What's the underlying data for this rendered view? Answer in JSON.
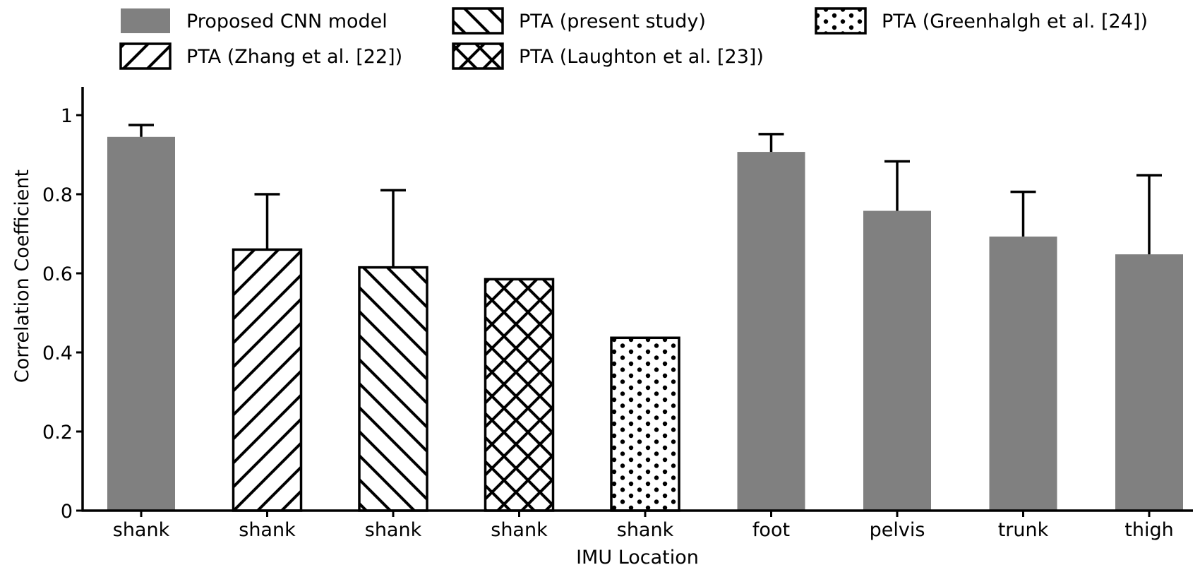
{
  "chart_data": {
    "type": "bar",
    "title": "",
    "xlabel": "IMU Location",
    "ylabel": "Correlation Coefficient",
    "ylim": [
      0,
      1.05
    ],
    "yticks": [
      {
        "value": 0,
        "label": "0"
      },
      {
        "value": 0.2,
        "label": "0.2"
      },
      {
        "value": 0.4,
        "label": "0.4"
      },
      {
        "value": 0.6,
        "label": "0.6"
      },
      {
        "value": 0.8,
        "label": "0.8"
      },
      {
        "value": 1,
        "label": "1"
      }
    ],
    "grid": false,
    "legend_position": "top",
    "legend": [
      {
        "key": "cnn",
        "label": "Proposed CNN model",
        "pattern": "solid"
      },
      {
        "key": "zhang",
        "label": "PTA (Zhang et al. [22])",
        "pattern": "forward-diagonal"
      },
      {
        "key": "present",
        "label": "PTA (present study)",
        "pattern": "back-diagonal"
      },
      {
        "key": "laughton",
        "label": "PTA (Laughton et al. [23])",
        "pattern": "crosshatch"
      },
      {
        "key": "greenhalgh",
        "label": "PTA (Greenhalgh et al. [24])",
        "pattern": "dots"
      }
    ],
    "bars": [
      {
        "category": "shank",
        "series": "cnn",
        "value": 0.945,
        "error": 0.03
      },
      {
        "category": "shank",
        "series": "zhang",
        "value": 0.66,
        "error": 0.14
      },
      {
        "category": "shank",
        "series": "present",
        "value": 0.615,
        "error": 0.195
      },
      {
        "category": "shank",
        "series": "laughton",
        "value": 0.585,
        "error": null
      },
      {
        "category": "shank",
        "series": "greenhalgh",
        "value": 0.437,
        "error": null
      },
      {
        "category": "foot",
        "series": "cnn",
        "value": 0.907,
        "error": 0.045
      },
      {
        "category": "pelvis",
        "series": "cnn",
        "value": 0.758,
        "error": 0.125
      },
      {
        "category": "trunk",
        "series": "cnn",
        "value": 0.693,
        "error": 0.113
      },
      {
        "category": "thigh",
        "series": "cnn",
        "value": 0.648,
        "error": 0.2
      }
    ],
    "colors": {
      "solid_fill": "#808080",
      "stroke": "#000000",
      "background": "#ffffff"
    }
  }
}
